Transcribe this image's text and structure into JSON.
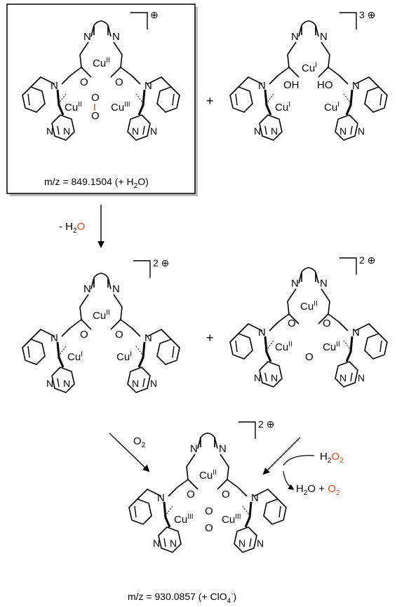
{
  "colors": {
    "cu2": "#3a6fb5",
    "cu1": "#e0a21e",
    "cu3": "#b07cc6",
    "oxygen": "#d84a1b",
    "bond": "#000000"
  },
  "labels": {
    "N": "N",
    "O": "O",
    "OH": "OH",
    "HO": "HO",
    "Cu": "Cu",
    "ox_I": "I",
    "ox_II": "II",
    "ox_III": "III",
    "plus": "+"
  },
  "complexes": {
    "c1": {
      "charge": "⊕",
      "metals": [
        "II",
        "II",
        "III"
      ],
      "bridge": "peroxo",
      "mz_prefix": "m/z = 849.1504 (+ H",
      "mz_sub": "2",
      "mz_suffix": "O)"
    },
    "c2": {
      "charge": "3 ⊕",
      "metals": [
        "I",
        "I",
        "I"
      ],
      "bridge": "hydroxy"
    },
    "c3": {
      "charge": "2 ⊕",
      "metals": [
        "II",
        "I",
        "I"
      ],
      "bridge": "none"
    },
    "c4": {
      "charge": "2 ⊕",
      "metals": [
        "II",
        "II",
        "II"
      ],
      "bridge": "oxo"
    },
    "c5": {
      "charge": "2 ⊕",
      "metals": [
        "II",
        "III",
        "III"
      ],
      "bridge": "peroxo",
      "mz_prefix": "m/z = 930.0857 (+ ClO",
      "mz_sub": "4",
      "mz_sup": "-",
      "mz_suffix": ")"
    }
  },
  "arrows": {
    "water_loss": {
      "prefix": "- H",
      "sub": "2",
      "suffix": "O"
    },
    "oxygen_in": {
      "text": "O",
      "sub": "2"
    },
    "h2o2_in": {
      "prefix": "H",
      "sub1": "2",
      "mid": "O",
      "sub2": "2"
    },
    "products": {
      "p1": "H",
      "p1_sub": "2",
      "p1_b": "O",
      "plus": " + ",
      "p2": "O",
      "p2_sub": "2"
    }
  }
}
